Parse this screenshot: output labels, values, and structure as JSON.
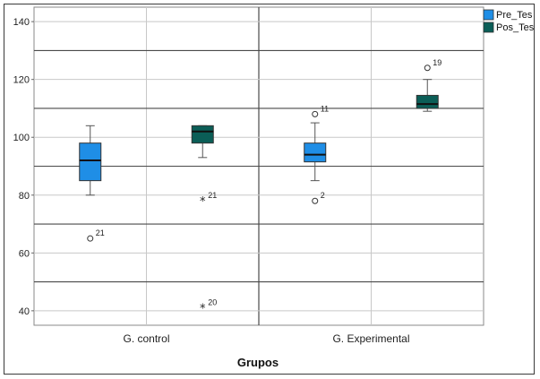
{
  "chart_data": {
    "type": "boxplot",
    "title": "",
    "xlabel": "Grupos",
    "ylabel": "",
    "ylim": [
      35,
      145
    ],
    "yticks": [
      40,
      60,
      80,
      100,
      120,
      140
    ],
    "grid": true,
    "legend_position": "top-right",
    "categories": [
      "G. control",
      "G. Experimental"
    ],
    "series": [
      {
        "name": "Pre_Tes",
        "color": "#1f8ee6",
        "boxes": [
          {
            "category": "G. control",
            "min": 80,
            "q1": 85,
            "median": 92,
            "q3": 98,
            "max": 104,
            "outliers": [
              {
                "value": 65,
                "label": "21",
                "symbol": "circle"
              }
            ]
          },
          {
            "category": "G. Experimental",
            "min": 85,
            "q1": 91.5,
            "median": 94,
            "q3": 98,
            "max": 105,
            "outliers": [
              {
                "value": 108,
                "label": "11",
                "symbol": "circle"
              },
              {
                "value": 78,
                "label": "2",
                "symbol": "circle"
              }
            ]
          }
        ]
      },
      {
        "name": "Pos_Tes",
        "color": "#0b5e57",
        "boxes": [
          {
            "category": "G. control",
            "min": 93,
            "q1": 98,
            "median": 102,
            "q3": 104,
            "max": 104,
            "outliers": [
              {
                "value": 78,
                "label": "21",
                "symbol": "star"
              },
              {
                "value": 41,
                "label": "20",
                "symbol": "star"
              }
            ]
          },
          {
            "category": "G. Experimental",
            "min": 109,
            "q1": 110,
            "median": 111.5,
            "q3": 114.5,
            "max": 120,
            "outliers": [
              {
                "value": 124,
                "label": "19",
                "symbol": "circle"
              }
            ]
          }
        ]
      }
    ]
  }
}
